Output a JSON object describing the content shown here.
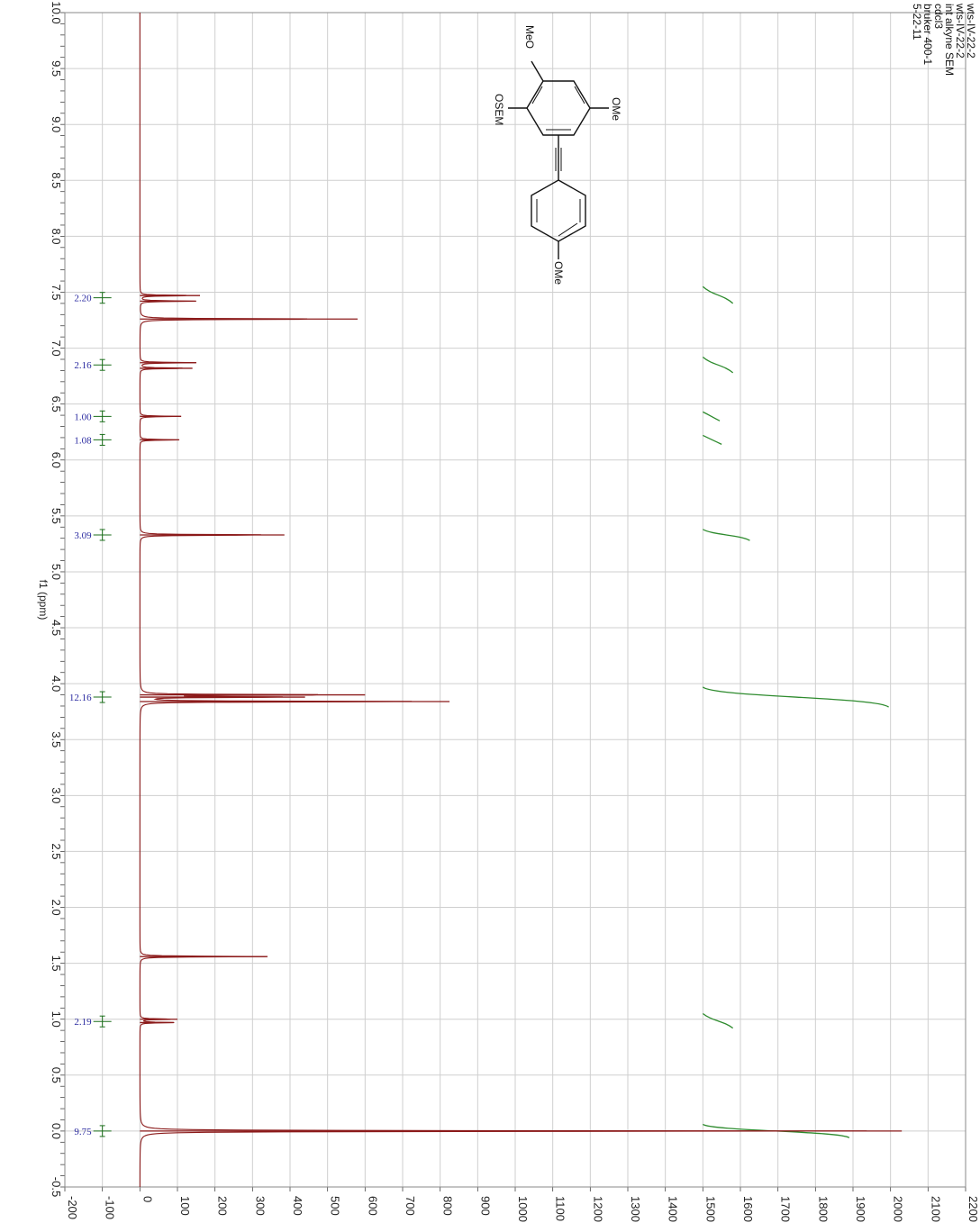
{
  "metadata_lines": [
    "wts-IV-22-2",
    "wts-IV-22-2",
    "int alkyne SEM",
    "cdcl3",
    "bruker 400-1",
    "5-22-11"
  ],
  "structure_labels": {
    "meo": "MeO",
    "ome_top": "OMe",
    "osem": "OSEM",
    "ome_right": "OMe"
  },
  "chart_data": {
    "type": "line",
    "xlabel": "f1 (ppm)",
    "xlim": [
      10.0,
      -0.5
    ],
    "ylim": [
      -200,
      2200
    ],
    "x_ticks": [
      "10.0",
      "9.5",
      "9.0",
      "8.5",
      "8.0",
      "7.5",
      "7.0",
      "6.5",
      "6.0",
      "5.5",
      "5.0",
      "4.5",
      "4.0",
      "3.5",
      "3.0",
      "2.5",
      "2.0",
      "1.5",
      "1.0",
      "0.5",
      "0.0",
      "-0.5"
    ],
    "y_ticks": [
      "-200",
      "-100",
      "0",
      "100",
      "200",
      "300",
      "400",
      "500",
      "600",
      "700",
      "800",
      "900",
      "1000",
      "1100",
      "1200",
      "1300",
      "1400",
      "1500",
      "1600",
      "1700",
      "1800",
      "1900",
      "2000",
      "2100",
      "2200"
    ],
    "grid": true,
    "peaks": [
      {
        "ppm": 7.47,
        "intensity": 160
      },
      {
        "ppm": 7.42,
        "intensity": 150
      },
      {
        "ppm": 7.26,
        "intensity": 580
      },
      {
        "ppm": 6.87,
        "intensity": 150
      },
      {
        "ppm": 6.82,
        "intensity": 140
      },
      {
        "ppm": 6.39,
        "intensity": 110
      },
      {
        "ppm": 6.18,
        "intensity": 105
      },
      {
        "ppm": 5.33,
        "intensity": 385
      },
      {
        "ppm": 3.9,
        "intensity": 600
      },
      {
        "ppm": 3.88,
        "intensity": 440
      },
      {
        "ppm": 3.84,
        "intensity": 825
      },
      {
        "ppm": 1.56,
        "intensity": 340
      },
      {
        "ppm": 1.0,
        "intensity": 100
      },
      {
        "ppm": 0.97,
        "intensity": 90
      },
      {
        "ppm": 0.0,
        "intensity": 2030
      }
    ],
    "integrals": [
      {
        "label": "2.20",
        "ppm": 7.45,
        "start": 7.55,
        "end": 7.4,
        "height": 80
      },
      {
        "label": "2.16",
        "ppm": 6.85,
        "start": 6.92,
        "end": 6.78,
        "height": 80
      },
      {
        "label": "1.00",
        "ppm": 6.39,
        "start": 6.43,
        "end": 6.35,
        "height": 45
      },
      {
        "label": "1.08",
        "ppm": 6.18,
        "start": 6.22,
        "end": 6.14,
        "height": 50
      },
      {
        "label": "3.09",
        "ppm": 5.33,
        "start": 5.38,
        "end": 5.28,
        "height": 125
      },
      {
        "label": "12.16",
        "ppm": 3.88,
        "start": 3.97,
        "end": 3.79,
        "height": 495
      },
      {
        "label": "2.19",
        "ppm": 0.98,
        "start": 1.05,
        "end": 0.92,
        "height": 80
      },
      {
        "label": "9.75",
        "ppm": 0.0,
        "start": 0.06,
        "end": -0.06,
        "height": 390
      }
    ]
  }
}
